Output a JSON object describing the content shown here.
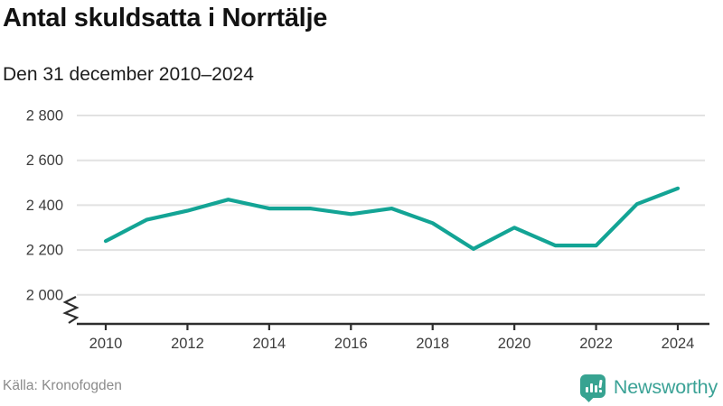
{
  "header": {
    "title": "Antal skuldsatta i Norrtälje",
    "subtitle": "Den 31 december 2010–2024"
  },
  "footer": {
    "source": "Källa: Kronofogden",
    "brand": "Newsworthy",
    "logo_icon": "speech-bubble-bar-chart-icon"
  },
  "colors": {
    "line": "#13a495",
    "brand_teal": "#3ba296",
    "grid": "#e2e2e2",
    "axis": "#2e2e2e",
    "tick_text": "#3d3d3d",
    "muted_text": "#8b8b8b"
  },
  "chart_data": {
    "type": "line",
    "title": "Antal skuldsatta i Norrtälje",
    "subtitle": "Den 31 december 2010–2024",
    "series": [
      {
        "name": "Antal skuldsatta",
        "x": [
          2010,
          2011,
          2012,
          2013,
          2014,
          2015,
          2016,
          2017,
          2018,
          2019,
          2020,
          2021,
          2022,
          2023,
          2024
        ],
        "values": [
          2240,
          2335,
          2375,
          2425,
          2385,
          2385,
          2360,
          2385,
          2320,
          2205,
          2300,
          2220,
          2220,
          2405,
          2475
        ]
      }
    ],
    "xlabel": "",
    "ylabel": "",
    "x_ticks": [
      2010,
      2012,
      2014,
      2016,
      2018,
      2020,
      2022,
      2024
    ],
    "x_tick_labels": [
      "2010",
      "2012",
      "2014",
      "2016",
      "2018",
      "2020",
      "2022",
      "2024"
    ],
    "y_ticks": [
      2000,
      2200,
      2400,
      2600,
      2800
    ],
    "y_tick_labels": [
      "2 000",
      "2 200",
      "2 400",
      "2 600",
      "2 800"
    ],
    "ylim": [
      2000,
      2800
    ],
    "axis_break": true,
    "grid": "horizontal",
    "legend": "none"
  }
}
